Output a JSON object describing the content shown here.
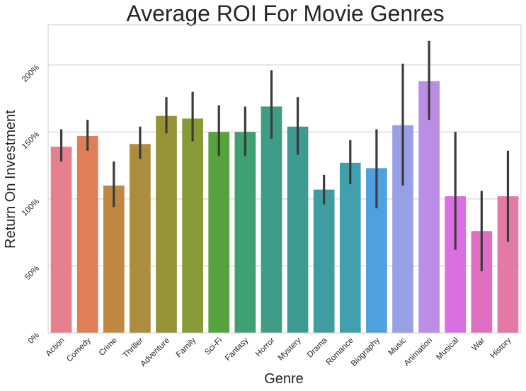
{
  "chart_data": {
    "type": "bar",
    "title": "Average ROI For Movie Genres",
    "xlabel": "Genre",
    "ylabel": "Return On Investment",
    "ylim": [
      0,
      2.3
    ],
    "yticks": [
      0,
      0.5,
      1.0,
      1.5,
      2.0
    ],
    "ytick_labels": [
      "0%",
      "50%",
      "100%",
      "150%",
      "200%"
    ],
    "grid": "horizontal",
    "categories": [
      "Action",
      "Comedy",
      "Crime",
      "Thriller",
      "Adventure",
      "Family",
      "Sci-Fi",
      "Fantasy",
      "Horror",
      "Mystery",
      "Drama",
      "Romance",
      "Biography",
      "Music",
      "Animation",
      "Musical",
      "War",
      "History"
    ],
    "values": [
      1.39,
      1.47,
      1.1,
      1.41,
      1.62,
      1.6,
      1.5,
      1.5,
      1.69,
      1.54,
      1.07,
      1.27,
      1.23,
      1.55,
      1.88,
      1.02,
      0.76,
      1.02
    ],
    "error_low": [
      1.28,
      1.36,
      0.94,
      1.3,
      1.49,
      1.43,
      1.32,
      1.32,
      1.45,
      1.33,
      0.96,
      1.11,
      0.93,
      1.1,
      1.59,
      0.62,
      0.46,
      0.68
    ],
    "error_high": [
      1.52,
      1.59,
      1.28,
      1.54,
      1.76,
      1.8,
      1.7,
      1.69,
      1.96,
      1.76,
      1.18,
      1.44,
      1.52,
      2.01,
      2.18,
      1.5,
      1.06,
      1.36
    ],
    "colors": [
      "#e6808e",
      "#e07e55",
      "#bf8742",
      "#ad8c3d",
      "#969336",
      "#879a37",
      "#56a23c",
      "#3fa073",
      "#3f9d87",
      "#3e9b91",
      "#3f9ca0",
      "#41a0ad",
      "#4ea0de",
      "#979fe6",
      "#bb8ee6",
      "#d96fe3",
      "#e06fc4",
      "#e37aa6"
    ]
  }
}
